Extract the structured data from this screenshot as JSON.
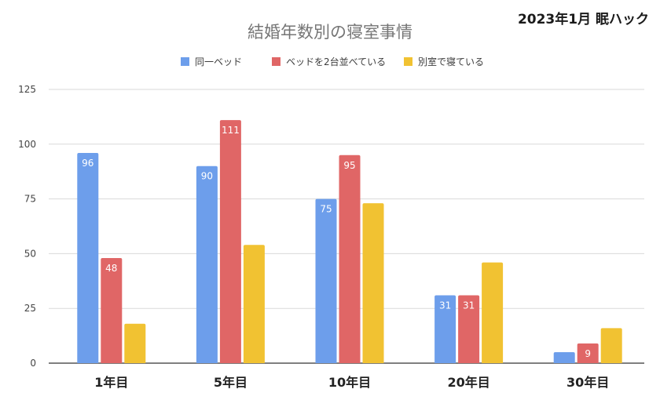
{
  "corner_note": "2023年1月 眠ハック",
  "chart_data": {
    "type": "bar",
    "title": "結婚年数別の寝室事情",
    "xlabel": "",
    "ylabel": "",
    "categories": [
      "1年目",
      "5年目",
      "10年目",
      "20年目",
      "30年目"
    ],
    "ylim": [
      0,
      125
    ],
    "yticks": [
      0,
      25,
      50,
      75,
      100,
      125
    ],
    "grid": true,
    "legend_position": "top",
    "series": [
      {
        "name": "同一ベッド",
        "color": "#6d9eeb",
        "label_color": "#ffffff",
        "values": [
          96,
          90,
          75,
          31,
          5
        ],
        "labels": [
          "96",
          "90",
          "75",
          "31",
          ""
        ]
      },
      {
        "name": "ベッドを2台並べている",
        "color": "#e06666",
        "label_color": "#ffffff",
        "values": [
          48,
          111,
          95,
          31,
          9
        ],
        "labels": [
          "48",
          "111",
          "95",
          "31",
          "9"
        ]
      },
      {
        "name": "別室で寝ている",
        "color": "#f1c232",
        "label_color": "#ffffff",
        "values": [
          18,
          54,
          73,
          46,
          16
        ],
        "labels": [
          "",
          "",
          "",
          "",
          ""
        ]
      }
    ]
  }
}
